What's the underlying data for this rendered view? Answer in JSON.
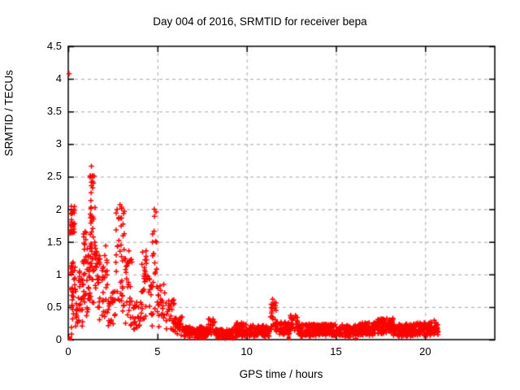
{
  "chart_data": {
    "type": "scatter",
    "title": "Day 004 of 2016, SRMTID for receiver bepa",
    "xlabel": "GPS time / hours",
    "ylabel": "SRMTID / TECUs",
    "xlim": [
      0,
      23.9
    ],
    "ylim": [
      0,
      4.5
    ],
    "xticks": [
      0,
      5,
      10,
      15,
      20
    ],
    "yticks": [
      0,
      0.5,
      1,
      1.5,
      2,
      2.5,
      3,
      3.5,
      4,
      4.5
    ],
    "x_tick_labels": [
      "0",
      "5",
      "10",
      "15",
      "20"
    ],
    "y_tick_labels": [
      "0",
      "0.5",
      "1",
      "1.5",
      "2",
      "2.5",
      "3",
      "3.5",
      "4",
      "4.5"
    ],
    "grid": true,
    "legend": "none",
    "marker": "plus",
    "marker_color": "#ff0000",
    "grid_color": "#a8a8a8",
    "border_color": "#000000",
    "background_color": "#ffffff",
    "outlier_points": [
      [
        0.05,
        4.08
      ],
      [
        1.3,
        2.66
      ],
      [
        2.9,
        2.07
      ],
      [
        4.82,
        2.0
      ],
      [
        11.45,
        0.62
      ],
      [
        16.1,
        0.02
      ]
    ],
    "square_points": [
      [
        0.1,
        0.02
      ],
      [
        12.35,
        0.02
      ]
    ],
    "dense_bands": [
      {
        "x0": 0.1,
        "x1": 0.38,
        "y0": 1.55,
        "y1": 2.06,
        "n": 26
      },
      {
        "x0": 0.1,
        "x1": 0.4,
        "y0": 0.5,
        "y1": 1.2,
        "n": 26
      },
      {
        "x0": 0.15,
        "x1": 0.5,
        "y0": 0.08,
        "y1": 0.5,
        "n": 10
      },
      {
        "x0": 0.4,
        "x1": 0.8,
        "y0": 0.1,
        "y1": 0.75,
        "n": 18
      },
      {
        "x0": 0.55,
        "x1": 0.78,
        "y0": 0.78,
        "y1": 1.05,
        "n": 7
      },
      {
        "x0": 0.8,
        "x1": 1.15,
        "y0": 0.35,
        "y1": 1.4,
        "n": 32
      },
      {
        "x0": 0.85,
        "x1": 1.05,
        "y0": 1.4,
        "y1": 1.68,
        "n": 7
      },
      {
        "x0": 1.15,
        "x1": 1.6,
        "y0": 0.55,
        "y1": 1.45,
        "n": 38
      },
      {
        "x0": 1.18,
        "x1": 1.5,
        "y0": 1.45,
        "y1": 2.45,
        "n": 24
      },
      {
        "x0": 1.22,
        "x1": 1.45,
        "y0": 2.45,
        "y1": 2.63,
        "n": 6
      },
      {
        "x0": 1.6,
        "x1": 2.0,
        "y0": 0.3,
        "y1": 1.3,
        "n": 28
      },
      {
        "x0": 2.0,
        "x1": 2.2,
        "y0": 0.35,
        "y1": 1.45,
        "n": 14
      },
      {
        "x0": 2.2,
        "x1": 2.65,
        "y0": 0.2,
        "y1": 0.85,
        "n": 22
      },
      {
        "x0": 2.65,
        "x1": 3.2,
        "y0": 0.4,
        "y1": 2.07,
        "n": 42
      },
      {
        "x0": 3.2,
        "x1": 3.6,
        "y0": 0.15,
        "y1": 1.4,
        "n": 28
      },
      {
        "x0": 3.6,
        "x1": 4.1,
        "y0": 0.12,
        "y1": 0.65,
        "n": 24
      },
      {
        "x0": 4.1,
        "x1": 4.5,
        "y0": 0.25,
        "y1": 1.5,
        "n": 28
      },
      {
        "x0": 4.5,
        "x1": 4.75,
        "y0": 0.15,
        "y1": 0.95,
        "n": 16
      },
      {
        "x0": 4.72,
        "x1": 4.95,
        "y0": 0.3,
        "y1": 2.0,
        "n": 16
      },
      {
        "x0": 4.95,
        "x1": 5.45,
        "y0": 0.15,
        "y1": 0.85,
        "n": 24
      },
      {
        "x0": 5.45,
        "x1": 5.95,
        "y0": 0.1,
        "y1": 0.62,
        "n": 24
      },
      {
        "x0": 5.95,
        "x1": 6.5,
        "y0": 0.06,
        "y1": 0.35,
        "n": 35
      },
      {
        "x0": 6.5,
        "x1": 7.9,
        "y0": 0.03,
        "y1": 0.2,
        "n": 110
      },
      {
        "x0": 7.85,
        "x1": 8.25,
        "y0": 0.08,
        "y1": 0.32,
        "n": 25
      },
      {
        "x0": 8.25,
        "x1": 9.3,
        "y0": 0.02,
        "y1": 0.16,
        "n": 90
      },
      {
        "x0": 9.3,
        "x1": 10.0,
        "y0": 0.04,
        "y1": 0.26,
        "n": 60
      },
      {
        "x0": 10.0,
        "x1": 11.28,
        "y0": 0.05,
        "y1": 0.22,
        "n": 110
      },
      {
        "x0": 11.3,
        "x1": 11.65,
        "y0": 0.15,
        "y1": 0.62,
        "n": 28
      },
      {
        "x0": 11.65,
        "x1": 12.45,
        "y0": 0.07,
        "y1": 0.27,
        "n": 55
      },
      {
        "x0": 12.45,
        "x1": 12.85,
        "y0": 0.1,
        "y1": 0.42,
        "n": 26
      },
      {
        "x0": 12.85,
        "x1": 14.0,
        "y0": 0.05,
        "y1": 0.24,
        "n": 100
      },
      {
        "x0": 14.0,
        "x1": 15.5,
        "y0": 0.06,
        "y1": 0.24,
        "n": 130
      },
      {
        "x0": 15.5,
        "x1": 16.3,
        "y0": 0.04,
        "y1": 0.22,
        "n": 70
      },
      {
        "x0": 16.3,
        "x1": 17.2,
        "y0": 0.06,
        "y1": 0.26,
        "n": 80
      },
      {
        "x0": 17.2,
        "x1": 18.2,
        "y0": 0.09,
        "y1": 0.33,
        "n": 90
      },
      {
        "x0": 18.2,
        "x1": 19.3,
        "y0": 0.05,
        "y1": 0.24,
        "n": 100
      },
      {
        "x0": 19.3,
        "x1": 20.3,
        "y0": 0.06,
        "y1": 0.26,
        "n": 90
      },
      {
        "x0": 20.3,
        "x1": 20.72,
        "y0": 0.07,
        "y1": 0.3,
        "n": 40
      }
    ]
  }
}
